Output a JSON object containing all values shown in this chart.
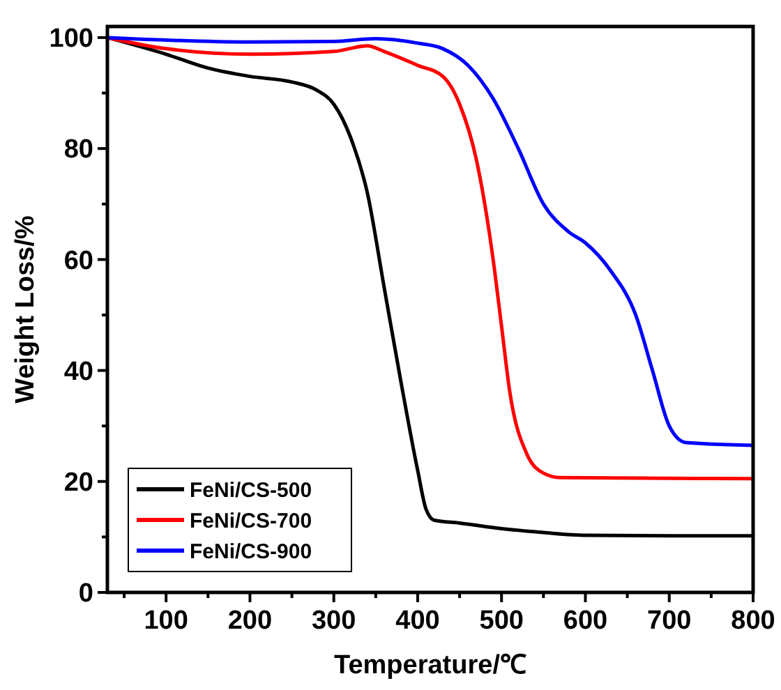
{
  "chart_data": {
    "type": "line",
    "xlabel": "Temperature/℃",
    "ylabel": "Weight Loss/%",
    "xlim": [
      30,
      800
    ],
    "ylim": [
      0,
      102
    ],
    "xticks": [
      {
        "value": 50,
        "label": null
      },
      100,
      {
        "value": 150,
        "label": null
      },
      200,
      {
        "value": 250,
        "label": null
      },
      300,
      {
        "value": 350,
        "label": null
      },
      400,
      {
        "value": 450,
        "label": null
      },
      500,
      {
        "value": 550,
        "label": null
      },
      600,
      {
        "value": 650,
        "label": null
      },
      700,
      {
        "value": 750,
        "label": null
      },
      800
    ],
    "yticks": [
      0,
      {
        "value": 10,
        "label": null
      },
      20,
      {
        "value": 30,
        "label": null
      },
      40,
      {
        "value": 50,
        "label": null
      },
      60,
      {
        "value": 70,
        "label": null
      },
      80,
      {
        "value": 90,
        "label": null
      },
      100
    ],
    "legend": "bottom left",
    "grid": false,
    "line_style": "solid",
    "marker": "none",
    "series": [
      {
        "name": "FeNi/CS-500",
        "color": "#000000",
        "x": [
          30,
          100,
          150,
          200,
          250,
          280,
          300,
          320,
          340,
          360,
          380,
          400,
          410,
          420,
          450,
          500,
          550,
          600,
          700,
          800
        ],
        "values": [
          100,
          97,
          94.5,
          93,
          92,
          90.5,
          88,
          82,
          72,
          55,
          38,
          22,
          15,
          13,
          12.5,
          11.5,
          10.8,
          10.3,
          10.2,
          10.2
        ]
      },
      {
        "name": "FeNi/CS-700",
        "color": "#ff0000",
        "x": [
          30,
          100,
          200,
          300,
          340,
          360,
          400,
          430,
          450,
          470,
          490,
          500,
          510,
          530,
          550,
          570,
          800
        ],
        "values": [
          100,
          98,
          97,
          97.5,
          98.5,
          97.5,
          95,
          93,
          88,
          78,
          60,
          48,
          36,
          25,
          21.5,
          20.7,
          20.5
        ]
      },
      {
        "name": "FeNi/CS-900",
        "color": "#0000ff",
        "x": [
          30,
          200,
          300,
          350,
          400,
          430,
          460,
          490,
          520,
          550,
          580,
          600,
          630,
          660,
          680,
          700,
          720,
          800
        ],
        "values": [
          100,
          99.2,
          99.3,
          99.8,
          99,
          98,
          95,
          89,
          80,
          70,
          65,
          63,
          58,
          50,
          40,
          30,
          27,
          26.5
        ]
      }
    ]
  }
}
